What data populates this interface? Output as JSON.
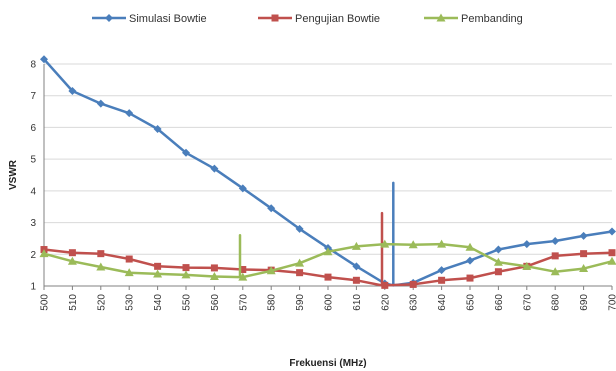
{
  "chart_data": {
    "type": "line",
    "title": "",
    "xlabel": "Frekuensi (MHz)",
    "ylabel": "VSWR",
    "xlim": [
      500,
      700
    ],
    "ylim": [
      1,
      8
    ],
    "yticks": [
      1,
      2,
      3,
      4,
      5,
      6,
      7,
      8
    ],
    "xticks": [
      500,
      510,
      520,
      530,
      540,
      550,
      560,
      570,
      580,
      590,
      600,
      610,
      620,
      630,
      640,
      650,
      660,
      670,
      680,
      690,
      700
    ],
    "grid": "horizontal",
    "legend_position": "top",
    "series": [
      {
        "name": "Simulasi Bowtie",
        "color": "#4a7ebb",
        "marker": "diamond",
        "points": [
          [
            500,
            8.15
          ],
          [
            510,
            7.15
          ],
          [
            520,
            6.75
          ],
          [
            530,
            6.45
          ],
          [
            540,
            5.95
          ],
          [
            550,
            5.2
          ],
          [
            560,
            4.7
          ],
          [
            570,
            4.08
          ],
          [
            580,
            3.45
          ],
          [
            590,
            2.8
          ],
          [
            600,
            2.2
          ],
          [
            610,
            1.62
          ],
          [
            620,
            1.08
          ],
          [
            623,
            1.02
          ],
          [
            623,
            4.25
          ],
          [
            623,
            1.02
          ],
          [
            630,
            1.1
          ],
          [
            640,
            1.5
          ],
          [
            650,
            1.8
          ],
          [
            660,
            2.15
          ],
          [
            670,
            2.32
          ],
          [
            680,
            2.42
          ],
          [
            690,
            2.58
          ],
          [
            700,
            2.72
          ]
        ]
      },
      {
        "name": "Pengujian Bowtie",
        "color": "#c0504d",
        "marker": "square",
        "points": [
          [
            500,
            2.15
          ],
          [
            510,
            2.05
          ],
          [
            520,
            2.02
          ],
          [
            530,
            1.85
          ],
          [
            540,
            1.62
          ],
          [
            550,
            1.58
          ],
          [
            560,
            1.57
          ],
          [
            570,
            1.52
          ],
          [
            580,
            1.5
          ],
          [
            590,
            1.42
          ],
          [
            600,
            1.28
          ],
          [
            610,
            1.18
          ],
          [
            619,
            1.02
          ],
          [
            619,
            3.3
          ],
          [
            619,
            1.02
          ],
          [
            620,
            1.02
          ],
          [
            630,
            1.05
          ],
          [
            640,
            1.18
          ],
          [
            650,
            1.25
          ],
          [
            660,
            1.45
          ],
          [
            670,
            1.62
          ],
          [
            680,
            1.95
          ],
          [
            690,
            2.02
          ],
          [
            700,
            2.05
          ]
        ]
      },
      {
        "name": "Pembanding",
        "color": "#9bbb59",
        "marker": "triangle",
        "points": [
          [
            500,
            2.02
          ],
          [
            510,
            1.78
          ],
          [
            520,
            1.6
          ],
          [
            530,
            1.42
          ],
          [
            540,
            1.38
          ],
          [
            550,
            1.35
          ],
          [
            560,
            1.3
          ],
          [
            569,
            1.28
          ],
          [
            569,
            2.6
          ],
          [
            569,
            1.28
          ],
          [
            570,
            1.28
          ],
          [
            580,
            1.48
          ],
          [
            590,
            1.72
          ],
          [
            600,
            2.08
          ],
          [
            610,
            2.25
          ],
          [
            620,
            2.32
          ],
          [
            630,
            2.3
          ],
          [
            640,
            2.32
          ],
          [
            650,
            2.22
          ],
          [
            660,
            1.75
          ],
          [
            670,
            1.62
          ],
          [
            680,
            1.45
          ],
          [
            690,
            1.55
          ],
          [
            700,
            1.78
          ]
        ]
      }
    ]
  }
}
